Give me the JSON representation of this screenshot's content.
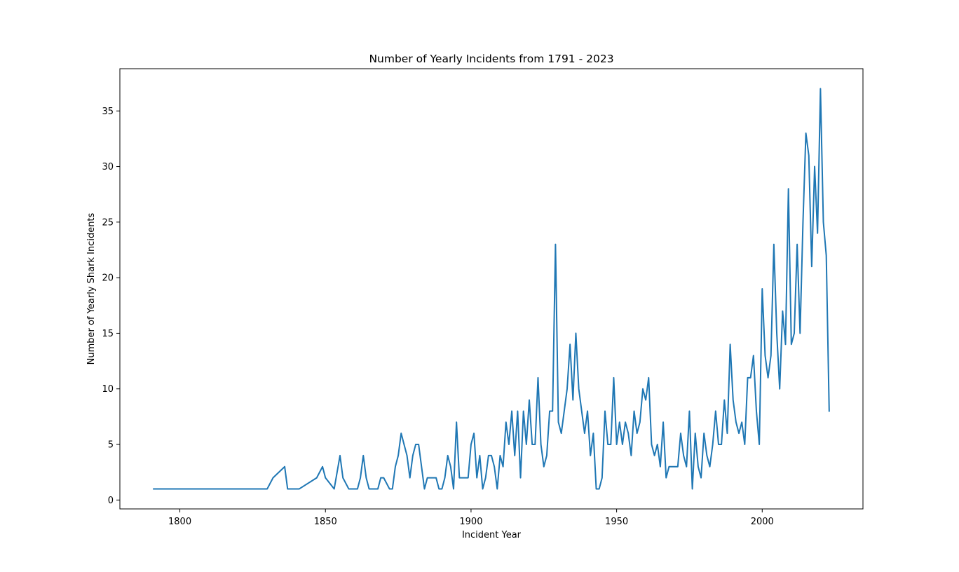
{
  "chart_data": {
    "type": "line",
    "title": "Number of Yearly Incidents from 1791 - 2023",
    "xlabel": "Incident Year",
    "ylabel": "Number of Yearly Shark Incidents",
    "xlim": [
      1779.4,
      2034.6
    ],
    "ylim": [
      -0.8,
      38.8
    ],
    "xticks": [
      1800,
      1850,
      1900,
      1950,
      2000
    ],
    "yticks": [
      0,
      5,
      10,
      15,
      20,
      25,
      30,
      35
    ],
    "grid": false,
    "legend": "none",
    "line_color": "#1f77b4",
    "series": [
      {
        "x": [
          1791,
          1830,
          1832,
          1836,
          1837,
          1838,
          1839,
          1841,
          1847,
          1849,
          1850,
          1853,
          1855,
          1856,
          1858,
          1859,
          1860,
          1861,
          1862,
          1863,
          1864,
          1865,
          1866,
          1867,
          1868,
          1869,
          1870,
          1872,
          1873,
          1874,
          1875,
          1876,
          1877,
          1878,
          1879,
          1880,
          1881,
          1882,
          1883,
          1884,
          1885,
          1886,
          1887,
          1888,
          1889,
          1890,
          1891,
          1892,
          1893,
          1894,
          1895,
          1896,
          1897,
          1898,
          1899,
          1900,
          1901,
          1902,
          1903,
          1904,
          1905,
          1906,
          1907,
          1908,
          1909,
          1910,
          1911,
          1912,
          1913,
          1914,
          1915,
          1916,
          1917,
          1918,
          1919,
          1920,
          1921,
          1922,
          1923,
          1924,
          1925,
          1926,
          1927,
          1928,
          1929,
          1930,
          1931,
          1932,
          1933,
          1934,
          1935,
          1936,
          1937,
          1938,
          1939,
          1940,
          1941,
          1942,
          1943,
          1944,
          1945,
          1946,
          1947,
          1948,
          1949,
          1950,
          1951,
          1952,
          1953,
          1954,
          1955,
          1956,
          1957,
          1958,
          1959,
          1960,
          1961,
          1962,
          1963,
          1964,
          1965,
          1966,
          1967,
          1968,
          1969,
          1970,
          1971,
          1972,
          1973,
          1974,
          1975,
          1976,
          1977,
          1978,
          1979,
          1980,
          1981,
          1982,
          1983,
          1984,
          1985,
          1986,
          1987,
          1988,
          1989,
          1990,
          1991,
          1992,
          1993,
          1994,
          1995,
          1996,
          1997,
          1998,
          1999,
          2000,
          2001,
          2002,
          2003,
          2004,
          2005,
          2006,
          2007,
          2008,
          2009,
          2010,
          2011,
          2012,
          2013,
          2014,
          2015,
          2016,
          2017,
          2018,
          2019,
          2020,
          2021,
          2022,
          2023
        ],
        "y": [
          1,
          1,
          2,
          3,
          1,
          1,
          1,
          1,
          2,
          3,
          2,
          1,
          4,
          2,
          1,
          1,
          1,
          1,
          2,
          4,
          2,
          1,
          1,
          1,
          1,
          2,
          2,
          1,
          1,
          3,
          4,
          6,
          5,
          4,
          2,
          4,
          5,
          5,
          3,
          1,
          2,
          2,
          2,
          2,
          1,
          1,
          2,
          4,
          3,
          1,
          7,
          2,
          2,
          2,
          2,
          5,
          6,
          2,
          4,
          1,
          2,
          4,
          4,
          3,
          1,
          4,
          3,
          7,
          5,
          8,
          4,
          8,
          2,
          8,
          5,
          9,
          5,
          5,
          11,
          5,
          3,
          4,
          8,
          8,
          23,
          7,
          6,
          8,
          10,
          14,
          9,
          15,
          10,
          8,
          6,
          8,
          4,
          6,
          1,
          1,
          2,
          8,
          5,
          5,
          11,
          5,
          7,
          5,
          7,
          6,
          4,
          8,
          6,
          7,
          10,
          9,
          11,
          5,
          4,
          5,
          3,
          7,
          2,
          3,
          3,
          3,
          3,
          6,
          4,
          3,
          8,
          1,
          6,
          3,
          2,
          6,
          4,
          3,
          5,
          8,
          5,
          5,
          9,
          6,
          14,
          9,
          7,
          6,
          7,
          5,
          11,
          11,
          13,
          8,
          5,
          19,
          13,
          11,
          13,
          23,
          15,
          10,
          17,
          14,
          28,
          14,
          15,
          23,
          15,
          25,
          33,
          31,
          21,
          30,
          24,
          37,
          25,
          22,
          8
        ]
      }
    ]
  }
}
